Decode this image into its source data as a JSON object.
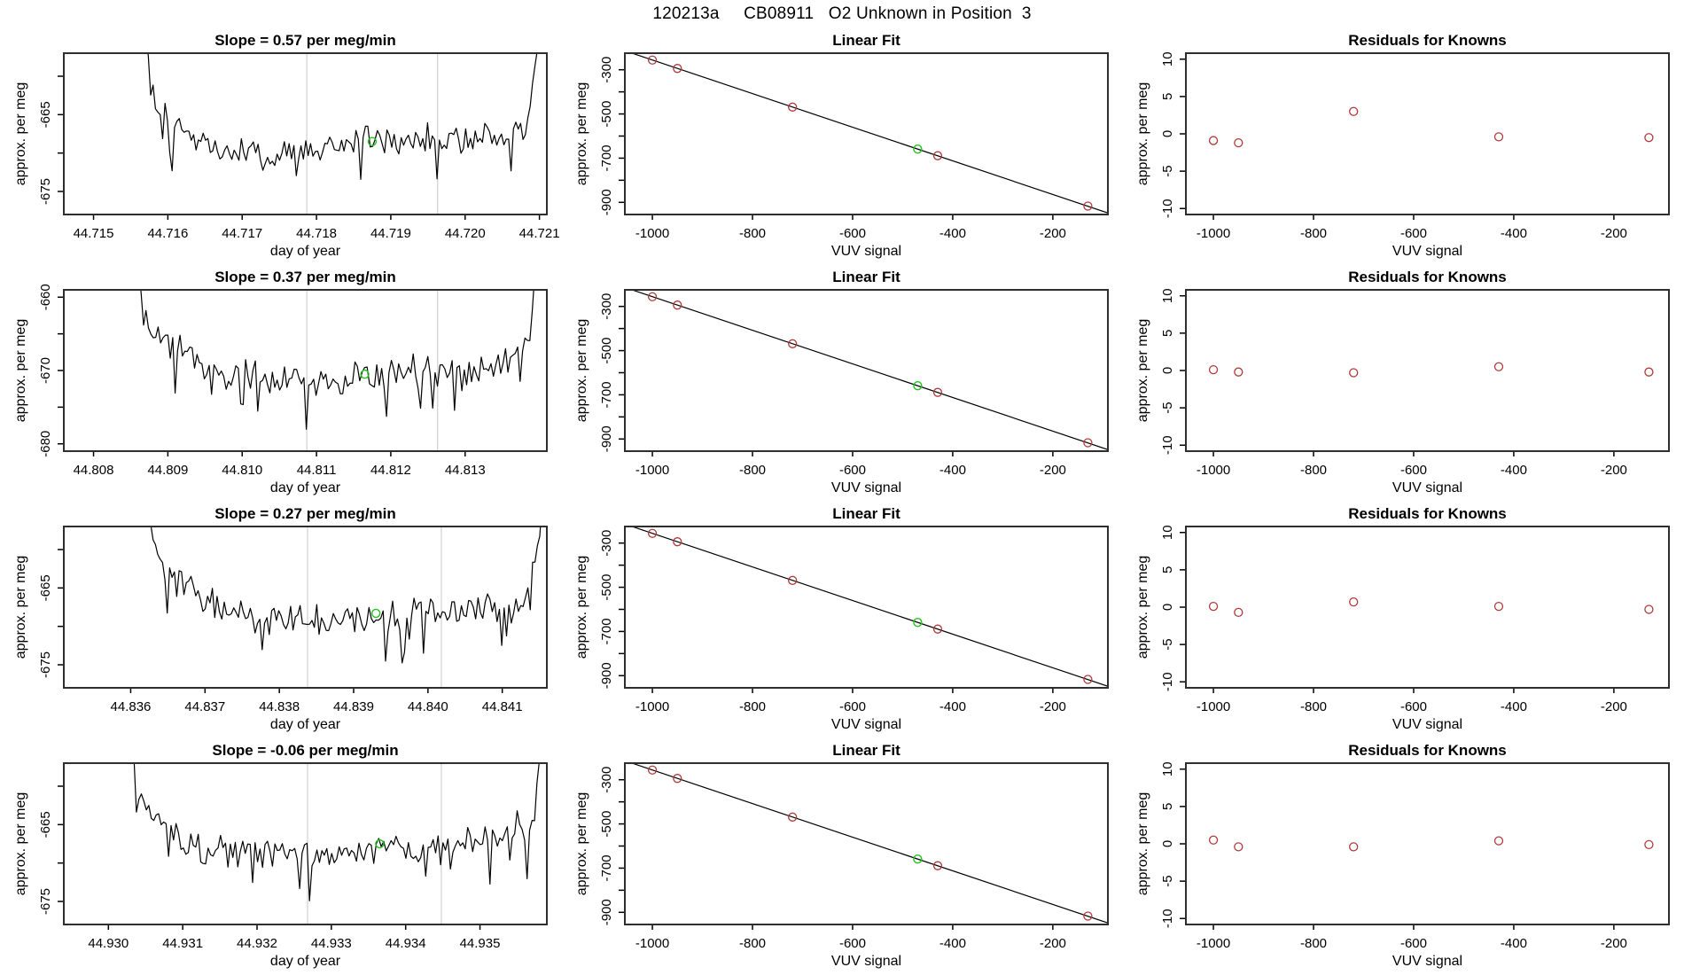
{
  "header": {
    "title": "120213a     CB08911   O2 Unknown in Position  3"
  },
  "colors": {
    "point": "#b03a3a",
    "marker_green": "#21c421",
    "series_line": "#000000",
    "fit_line": "#000000",
    "vline": "#d0d0d0",
    "box": "#2e2e2e"
  },
  "chart_data": [
    {
      "type": "line",
      "title": "Slope =  0.57  per meg/min",
      "xlabel": "day of year",
      "ylabel": "approx. per meg",
      "xlim": [
        44.7146,
        44.7211
      ],
      "ylim": [
        -678,
        -657
      ],
      "xticks": [
        44.715,
        44.716,
        44.717,
        44.718,
        44.719,
        44.72,
        44.721
      ],
      "xlabels": [
        "44.715",
        "44.716",
        "44.717",
        "44.718",
        "44.719",
        "44.720",
        "44.721"
      ],
      "yticks": [
        -675,
        -670,
        -665,
        -660
      ],
      "ylabels": [
        "-675",
        "",
        "-665",
        ""
      ],
      "vlines": [
        44.71787,
        44.71963
      ],
      "marker": {
        "x": 44.71875,
        "y": -668.5
      },
      "gen": {
        "seed": 101,
        "n": 170,
        "t0": 0.165,
        "t1": 1.0,
        "amp": 2.3,
        "env": [
          [
            0.165,
            -651
          ],
          [
            0.178,
            -661
          ],
          [
            0.2,
            -663.5
          ],
          [
            0.24,
            -666.5
          ],
          [
            0.32,
            -669.5
          ],
          [
            0.45,
            -670.5
          ],
          [
            0.58,
            -668.5
          ],
          [
            0.7,
            -668
          ],
          [
            0.82,
            -668
          ],
          [
            0.9,
            -667.5
          ],
          [
            0.955,
            -666.5
          ],
          [
            0.975,
            -660
          ],
          [
            1,
            -648
          ]
        ]
      }
    },
    {
      "type": "scatter_line",
      "title": "Linear Fit",
      "xlabel": "VUV signal",
      "ylabel": "approx. per meg",
      "xlim": [
        -1055,
        -90
      ],
      "ylim": [
        -955,
        -225
      ],
      "xticks": [
        -1000,
        -800,
        -600,
        -400,
        -200
      ],
      "xlabels": [
        "-1000",
        "-800",
        "-600",
        "-400",
        "-200"
      ],
      "yticks": [
        -300,
        -400,
        -500,
        -600,
        -700,
        -800,
        -900
      ],
      "ylabels": [
        "-300",
        "",
        "-500",
        "",
        "-700",
        "",
        "-900"
      ],
      "line": {
        "x1": -1055,
        "y1": -214,
        "x2": -90,
        "y2": -948
      },
      "points": [
        [
          -1000,
          -256
        ],
        [
          -950,
          -294
        ],
        [
          -720,
          -469
        ],
        [
          -430,
          -689
        ],
        [
          -130,
          -917
        ]
      ],
      "marker": {
        "x": -470,
        "y": -659
      }
    },
    {
      "type": "scatter",
      "title": "Residuals for Knowns",
      "xlabel": "VUV signal",
      "ylabel": "approx. per meg",
      "xlim": [
        -1055,
        -90
      ],
      "ylim": [
        -10.8,
        10.8
      ],
      "xticks": [
        -1000,
        -800,
        -600,
        -400,
        -200
      ],
      "xlabels": [
        "-1000",
        "-800",
        "-600",
        "-400",
        "-200"
      ],
      "yticks": [
        10,
        5,
        0,
        -5,
        -10
      ],
      "ylabels": [
        "10",
        "5",
        "0",
        "-5",
        "-10"
      ],
      "points": [
        [
          -1000,
          -0.9
        ],
        [
          -950,
          -1.2
        ],
        [
          -720,
          3.0
        ],
        [
          -430,
          -0.4
        ],
        [
          -130,
          -0.5
        ]
      ]
    },
    {
      "type": "line",
      "title": "Slope =  0.37  per meg/min",
      "xlabel": "day of year",
      "ylabel": "approx. per meg",
      "xlim": [
        44.8076,
        44.8141
      ],
      "ylim": [
        -681,
        -659
      ],
      "xticks": [
        44.808,
        44.809,
        44.81,
        44.811,
        44.812,
        44.813
      ],
      "xlabels": [
        "44.808",
        "44.809",
        "44.810",
        "44.811",
        "44.812",
        "44.813"
      ],
      "yticks": [
        -680,
        -675,
        -670,
        -665,
        -660
      ],
      "ylabels": [
        "-680",
        "",
        "-670",
        "",
        "-660"
      ],
      "vlines": [
        44.81087,
        44.81263
      ],
      "marker": {
        "x": 44.81165,
        "y": -670.5
      },
      "gen": {
        "seed": 202,
        "n": 170,
        "t0": 0.15,
        "t1": 1.0,
        "amp": 2.6,
        "env": [
          [
            0.15,
            -653
          ],
          [
            0.165,
            -662
          ],
          [
            0.19,
            -665
          ],
          [
            0.25,
            -668
          ],
          [
            0.33,
            -670.5
          ],
          [
            0.5,
            -672
          ],
          [
            0.63,
            -670.5
          ],
          [
            0.78,
            -670
          ],
          [
            0.9,
            -669.5
          ],
          [
            0.96,
            -667
          ],
          [
            0.98,
            -655
          ],
          [
            1,
            -650
          ]
        ]
      }
    },
    {
      "type": "scatter_line",
      "title": "Linear Fit",
      "xlabel": "VUV signal",
      "ylabel": "approx. per meg",
      "xlim": [
        -1055,
        -90
      ],
      "ylim": [
        -955,
        -225
      ],
      "xticks": [
        -1000,
        -800,
        -600,
        -400,
        -200
      ],
      "xlabels": [
        "-1000",
        "-800",
        "-600",
        "-400",
        "-200"
      ],
      "yticks": [
        -300,
        -400,
        -500,
        -600,
        -700,
        -800,
        -900
      ],
      "ylabels": [
        "-300",
        "",
        "-500",
        "",
        "-700",
        "",
        "-900"
      ],
      "line": {
        "x1": -1055,
        "y1": -214,
        "x2": -90,
        "y2": -948
      },
      "points": [
        [
          -1000,
          -256
        ],
        [
          -950,
          -294
        ],
        [
          -720,
          -469
        ],
        [
          -430,
          -689
        ],
        [
          -130,
          -917
        ]
      ],
      "marker": {
        "x": -470,
        "y": -659
      }
    },
    {
      "type": "scatter",
      "title": "Residuals for Knowns",
      "xlabel": "VUV signal",
      "ylabel": "approx. per meg",
      "xlim": [
        -1055,
        -90
      ],
      "ylim": [
        -10.8,
        10.8
      ],
      "xticks": [
        -1000,
        -800,
        -600,
        -400,
        -200
      ],
      "xlabels": [
        "-1000",
        "-800",
        "-600",
        "-400",
        "-200"
      ],
      "yticks": [
        10,
        5,
        0,
        -5,
        -10
      ],
      "ylabels": [
        "10",
        "5",
        "0",
        "-5",
        "-10"
      ],
      "points": [
        [
          -1000,
          0.1
        ],
        [
          -950,
          -0.2
        ],
        [
          -720,
          -0.3
        ],
        [
          -430,
          0.5
        ],
        [
          -130,
          -0.2
        ]
      ]
    },
    {
      "type": "line",
      "title": "Slope =  0.27  per meg/min",
      "xlabel": "day of year",
      "ylabel": "approx. per meg",
      "xlim": [
        44.8351,
        44.8416
      ],
      "ylim": [
        -678,
        -657
      ],
      "xticks": [
        44.836,
        44.837,
        44.838,
        44.839,
        44.84,
        44.841
      ],
      "xlabels": [
        "44.836",
        "44.837",
        "44.838",
        "44.839",
        "44.840",
        "44.841"
      ],
      "yticks": [
        -675,
        -670,
        -665,
        -660
      ],
      "ylabels": [
        "-675",
        "",
        "-665",
        ""
      ],
      "vlines": [
        44.83838,
        44.84018
      ],
      "marker": {
        "x": 44.8393,
        "y": -668.3
      },
      "gen": {
        "seed": 303,
        "n": 170,
        "t0": 0.17,
        "t1": 1.0,
        "amp": 2.4,
        "env": [
          [
            0.17,
            -650
          ],
          [
            0.185,
            -659
          ],
          [
            0.21,
            -663
          ],
          [
            0.28,
            -666.5
          ],
          [
            0.42,
            -669.5
          ],
          [
            0.58,
            -669
          ],
          [
            0.72,
            -668.5
          ],
          [
            0.86,
            -668
          ],
          [
            0.95,
            -667.5
          ],
          [
            0.985,
            -658
          ],
          [
            1,
            -650
          ]
        ]
      }
    },
    {
      "type": "scatter_line",
      "title": "Linear Fit",
      "xlabel": "VUV signal",
      "ylabel": "approx. per meg",
      "xlim": [
        -1055,
        -90
      ],
      "ylim": [
        -955,
        -225
      ],
      "xticks": [
        -1000,
        -800,
        -600,
        -400,
        -200
      ],
      "xlabels": [
        "-1000",
        "-800",
        "-600",
        "-400",
        "-200"
      ],
      "yticks": [
        -300,
        -400,
        -500,
        -600,
        -700,
        -800,
        -900
      ],
      "ylabels": [
        "-300",
        "",
        "-500",
        "",
        "-700",
        "",
        "-900"
      ],
      "line": {
        "x1": -1055,
        "y1": -214,
        "x2": -90,
        "y2": -948
      },
      "points": [
        [
          -1000,
          -256
        ],
        [
          -950,
          -294
        ],
        [
          -720,
          -469
        ],
        [
          -430,
          -689
        ],
        [
          -130,
          -917
        ]
      ],
      "marker": {
        "x": -470,
        "y": -659
      }
    },
    {
      "type": "scatter",
      "title": "Residuals for Knowns",
      "xlabel": "VUV signal",
      "ylabel": "approx. per meg",
      "xlim": [
        -1055,
        -90
      ],
      "ylim": [
        -10.8,
        10.8
      ],
      "xticks": [
        -1000,
        -800,
        -600,
        -400,
        -200
      ],
      "xlabels": [
        "-1000",
        "-800",
        "-600",
        "-400",
        "-200"
      ],
      "yticks": [
        10,
        5,
        0,
        -5,
        -10
      ],
      "ylabels": [
        "10",
        "5",
        "0",
        "-5",
        "-10"
      ],
      "points": [
        [
          -1000,
          0.1
        ],
        [
          -950,
          -0.7
        ],
        [
          -720,
          0.7
        ],
        [
          -430,
          0.1
        ],
        [
          -130,
          -0.3
        ]
      ]
    },
    {
      "type": "line",
      "title": "Slope =  -0.06  per meg/min",
      "xlabel": "day of year",
      "ylabel": "approx. per meg",
      "xlim": [
        44.9294,
        44.9359
      ],
      "ylim": [
        -678,
        -657
      ],
      "xticks": [
        44.93,
        44.931,
        44.932,
        44.933,
        44.934,
        44.935
      ],
      "xlabels": [
        "44.930",
        "44.931",
        "44.932",
        "44.933",
        "44.934",
        "44.935"
      ],
      "yticks": [
        -675,
        -670,
        -665,
        -660
      ],
      "ylabels": [
        "-675",
        "",
        "-665",
        ""
      ],
      "vlines": [
        44.93268,
        44.93448
      ],
      "marker": {
        "x": 44.93365,
        "y": -667.5
      },
      "gen": {
        "seed": 404,
        "n": 170,
        "t0": 0.135,
        "t1": 1.0,
        "amp": 2.4,
        "env": [
          [
            0.135,
            -652
          ],
          [
            0.155,
            -661
          ],
          [
            0.19,
            -665
          ],
          [
            0.28,
            -668
          ],
          [
            0.45,
            -669
          ],
          [
            0.62,
            -668.5
          ],
          [
            0.78,
            -668
          ],
          [
            0.88,
            -667
          ],
          [
            0.935,
            -664.5
          ],
          [
            0.955,
            -666.5
          ],
          [
            0.975,
            -663
          ],
          [
            0.99,
            -652
          ]
        ]
      }
    },
    {
      "type": "scatter_line",
      "title": "Linear Fit",
      "xlabel": "VUV signal",
      "ylabel": "approx. per meg",
      "xlim": [
        -1055,
        -90
      ],
      "ylim": [
        -955,
        -225
      ],
      "xticks": [
        -1000,
        -800,
        -600,
        -400,
        -200
      ],
      "xlabels": [
        "-1000",
        "-800",
        "-600",
        "-400",
        "-200"
      ],
      "yticks": [
        -300,
        -400,
        -500,
        -600,
        -700,
        -800,
        -900
      ],
      "ylabels": [
        "-300",
        "",
        "-500",
        "",
        "-700",
        "",
        "-900"
      ],
      "line": {
        "x1": -1055,
        "y1": -214,
        "x2": -90,
        "y2": -948
      },
      "points": [
        [
          -1000,
          -256
        ],
        [
          -950,
          -294
        ],
        [
          -720,
          -469
        ],
        [
          -430,
          -689
        ],
        [
          -130,
          -917
        ]
      ],
      "marker": {
        "x": -470,
        "y": -659
      }
    },
    {
      "type": "scatter",
      "title": "Residuals for Knowns",
      "xlabel": "VUV signal",
      "ylabel": "approx. per meg",
      "xlim": [
        -1055,
        -90
      ],
      "ylim": [
        -10.8,
        10.8
      ],
      "xticks": [
        -1000,
        -800,
        -600,
        -400,
        -200
      ],
      "xlabels": [
        "-1000",
        "-800",
        "-600",
        "-400",
        "-200"
      ],
      "yticks": [
        10,
        5,
        0,
        -5,
        -10
      ],
      "ylabels": [
        "10",
        "5",
        "0",
        "-5",
        "-10"
      ],
      "points": [
        [
          -1000,
          0.5
        ],
        [
          -950,
          -0.4
        ],
        [
          -720,
          -0.4
        ],
        [
          -430,
          0.4
        ],
        [
          -130,
          -0.1
        ]
      ]
    }
  ]
}
